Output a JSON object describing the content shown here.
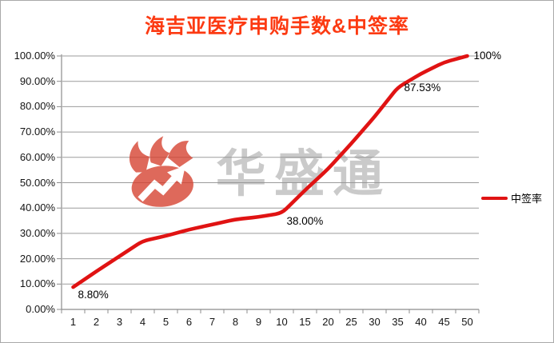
{
  "title": {
    "text": "海吉亚医疗申购手数&中签率",
    "color": "#fc3a12"
  },
  "legend": {
    "label": "中签率",
    "position": "right"
  },
  "watermark": {
    "text": "华盛通",
    "logo_icon": "flame-arrow-logo"
  },
  "chart_data": {
    "type": "line",
    "title": "海吉亚医疗申购手数&中签率",
    "xlabel": "",
    "ylabel": "",
    "categories": [
      "1",
      "2",
      "3",
      "4",
      "5",
      "6",
      "7",
      "8",
      "9",
      "10",
      "15",
      "20",
      "25",
      "30",
      "35",
      "40",
      "45",
      "50"
    ],
    "series": [
      {
        "name": "中签率",
        "values": [
          8.8,
          15,
          21,
          27,
          29,
          31.5,
          33.5,
          35.5,
          36.5,
          38,
          47,
          55.5,
          65.5,
          76,
          87.53,
          93,
          97.5,
          100
        ]
      }
    ],
    "point_labels": [
      {
        "index": 0,
        "text": "8.80%",
        "pos": "below-right"
      },
      {
        "index": 9,
        "text": "38.00%",
        "pos": "below-right"
      },
      {
        "index": 14,
        "text": "87.53%",
        "pos": "right"
      },
      {
        "index": 17,
        "text": "100%",
        "pos": "right"
      }
    ],
    "ylim": [
      0,
      100
    ],
    "ytick_labels": [
      "100.00%",
      "90.00%",
      "80.00%",
      "70.00%",
      "60.00%",
      "50.00%",
      "40.00%",
      "30.00%",
      "20.00%",
      "10.00%",
      "0.00%"
    ],
    "grid": true,
    "legend_position": "right",
    "colors": {
      "line": "#e01313",
      "grid": "#9b9b9b",
      "axis": "#8c8c8c",
      "tick_text": "#141414"
    }
  }
}
